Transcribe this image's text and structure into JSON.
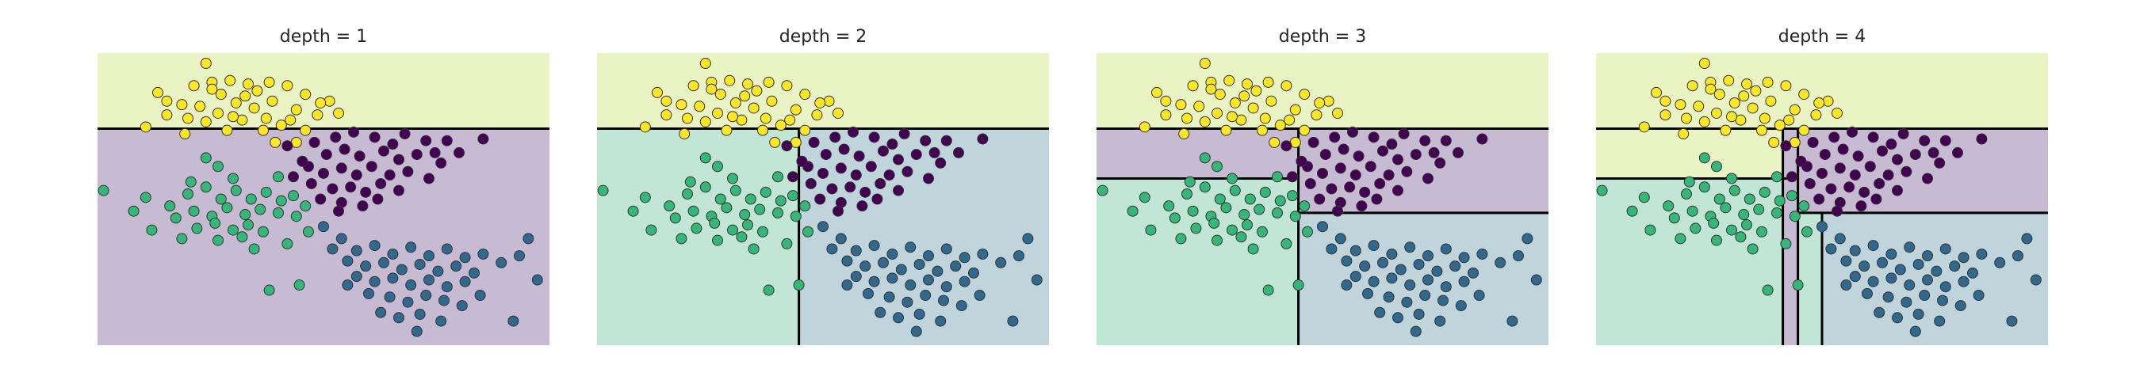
{
  "chart_data": [
    {
      "type": "scatter",
      "title": "depth = 1",
      "xlim": [
        -4,
        3.5
      ],
      "ylim": [
        -3,
        5.5
      ],
      "regions": [
        {
          "x": [
            -4,
            3.5
          ],
          "y": [
            3.3,
            5.5
          ],
          "class": 3
        },
        {
          "x": [
            -4,
            3.5
          ],
          "y": [
            -3,
            3.3
          ],
          "class": 0
        }
      ],
      "splits": [
        {
          "orient": "h",
          "at": 3.3,
          "from": -4,
          "to": 3.5
        }
      ]
    },
    {
      "type": "scatter",
      "title": "depth = 2",
      "xlim": [
        -4,
        3.5
      ],
      "ylim": [
        -3,
        5.5
      ],
      "regions": [
        {
          "x": [
            -4,
            3.5
          ],
          "y": [
            3.3,
            5.5
          ],
          "class": 3
        },
        {
          "x": [
            -4,
            -0.65
          ],
          "y": [
            -3,
            3.3
          ],
          "class": 2
        },
        {
          "x": [
            -0.65,
            3.5
          ],
          "y": [
            -3,
            3.3
          ],
          "class": 1
        }
      ],
      "splits": [
        {
          "orient": "h",
          "at": 3.3,
          "from": -4,
          "to": 3.5
        },
        {
          "orient": "v",
          "at": -0.65,
          "from": -3,
          "to": 3.3
        }
      ]
    },
    {
      "type": "scatter",
      "title": "depth = 3",
      "xlim": [
        -4,
        3.5
      ],
      "ylim": [
        -3,
        5.5
      ],
      "regions": [
        {
          "x": [
            -4,
            3.5
          ],
          "y": [
            3.3,
            5.5
          ],
          "class": 3
        },
        {
          "x": [
            -4,
            -0.65
          ],
          "y": [
            1.85,
            3.3
          ],
          "class": 0
        },
        {
          "x": [
            -4,
            -0.65
          ],
          "y": [
            -3,
            1.85
          ],
          "class": 2
        },
        {
          "x": [
            -0.65,
            3.5
          ],
          "y": [
            0.85,
            3.3
          ],
          "class": 0
        },
        {
          "x": [
            -0.65,
            3.5
          ],
          "y": [
            -3,
            0.85
          ],
          "class": 1
        }
      ],
      "splits": [
        {
          "orient": "h",
          "at": 3.3,
          "from": -4,
          "to": 3.5
        },
        {
          "orient": "v",
          "at": -0.65,
          "from": -3,
          "to": 3.3
        },
        {
          "orient": "h",
          "at": 1.85,
          "from": -4,
          "to": -0.65
        },
        {
          "orient": "h",
          "at": 0.85,
          "from": -0.65,
          "to": 3.5
        }
      ]
    },
    {
      "type": "scatter",
      "title": "depth = 4",
      "xlim": [
        -4,
        3.5
      ],
      "ylim": [
        -3,
        5.5
      ],
      "regions": [
        {
          "x": [
            -4,
            3.5
          ],
          "y": [
            3.3,
            5.5
          ],
          "class": 3
        },
        {
          "x": [
            -4,
            -0.9
          ],
          "y": [
            1.85,
            3.3
          ],
          "class": 3
        },
        {
          "x": [
            -0.9,
            -0.65
          ],
          "y": [
            1.85,
            3.3
          ],
          "class": 0
        },
        {
          "x": [
            -4,
            -0.9
          ],
          "y": [
            -3,
            1.85
          ],
          "class": 2
        },
        {
          "x": [
            -0.9,
            -0.65
          ],
          "y": [
            -3,
            1.85
          ],
          "class": 0
        },
        {
          "x": [
            -0.65,
            3.5
          ],
          "y": [
            0.85,
            3.3
          ],
          "class": 0
        },
        {
          "x": [
            -0.65,
            -0.25
          ],
          "y": [
            -3,
            0.85
          ],
          "class": 2
        },
        {
          "x": [
            -0.25,
            3.5
          ],
          "y": [
            -3,
            0.85
          ],
          "class": 1
        }
      ],
      "splits": [
        {
          "orient": "h",
          "at": 3.3,
          "from": -4,
          "to": 3.5
        },
        {
          "orient": "v",
          "at": -0.65,
          "from": -3,
          "to": 3.3
        },
        {
          "orient": "h",
          "at": 1.85,
          "from": -4,
          "to": -0.65
        },
        {
          "orient": "h",
          "at": 0.85,
          "from": -0.65,
          "to": 3.5
        },
        {
          "orient": "v",
          "at": -0.9,
          "from": -3,
          "to": 3.3
        },
        {
          "orient": "v",
          "at": -0.25,
          "from": -3,
          "to": 0.85
        }
      ]
    }
  ],
  "points": [
    [
      -2.2,
      5.2,
      3
    ],
    [
      -3.0,
      4.35,
      3
    ],
    [
      -2.85,
      4.1,
      3
    ],
    [
      -2.4,
      4.55,
      3
    ],
    [
      -2.1,
      4.65,
      3
    ],
    [
      -1.8,
      4.7,
      3
    ],
    [
      -1.5,
      4.6,
      3
    ],
    [
      -1.15,
      4.65,
      3
    ],
    [
      -0.85,
      4.55,
      3
    ],
    [
      -0.55,
      4.3,
      3
    ],
    [
      -1.35,
      4.4,
      3
    ],
    [
      -1.95,
      4.3,
      3
    ],
    [
      -2.6,
      4.0,
      3
    ],
    [
      -2.3,
      3.95,
      3
    ],
    [
      -1.7,
      4.05,
      3
    ],
    [
      -1.1,
      4.1,
      3
    ],
    [
      -0.7,
      3.85,
      3
    ],
    [
      -1.4,
      3.9,
      3
    ],
    [
      -2.0,
      3.75,
      3
    ],
    [
      -2.5,
      3.6,
      3
    ],
    [
      -2.85,
      3.7,
      3
    ],
    [
      -1.2,
      3.6,
      3
    ],
    [
      -0.8,
      3.55,
      3
    ],
    [
      -0.35,
      3.7,
      3
    ],
    [
      0.0,
      3.75,
      3
    ],
    [
      -1.6,
      3.55,
      3
    ],
    [
      -2.2,
      3.5,
      3
    ],
    [
      -0.95,
      3.4,
      3
    ],
    [
      -3.2,
      3.35,
      3
    ],
    [
      -1.85,
      3.25,
      3
    ],
    [
      -1.25,
      3.25,
      3
    ],
    [
      -0.55,
      3.25,
      3
    ],
    [
      -2.55,
      3.15,
      3
    ],
    [
      -0.15,
      4.1,
      3
    ],
    [
      -1.75,
      3.65,
      3
    ],
    [
      -1.05,
      2.9,
      3
    ],
    [
      -0.7,
      2.9,
      3
    ],
    [
      -2.1,
      4.45,
      3
    ],
    [
      -1.55,
      4.25,
      3
    ],
    [
      -0.3,
      4.05,
      3
    ],
    [
      -0.4,
      2.9,
      0
    ],
    [
      -0.05,
      3.05,
      0
    ],
    [
      0.25,
      3.2,
      0
    ],
    [
      0.6,
      3.05,
      0
    ],
    [
      1.1,
      3.15,
      0
    ],
    [
      1.45,
      2.95,
      0
    ],
    [
      -0.2,
      2.55,
      0
    ],
    [
      0.1,
      2.7,
      0
    ],
    [
      0.35,
      2.5,
      0
    ],
    [
      0.75,
      2.65,
      0
    ],
    [
      1.0,
      2.4,
      0
    ],
    [
      1.3,
      2.55,
      0
    ],
    [
      1.7,
      2.3,
      0
    ],
    [
      2.0,
      2.6,
      0
    ],
    [
      -0.5,
      2.2,
      0
    ],
    [
      -0.25,
      2.0,
      0
    ],
    [
      0.05,
      2.15,
      0
    ],
    [
      0.3,
      1.95,
      0
    ],
    [
      0.55,
      2.2,
      0
    ],
    [
      0.85,
      1.95,
      0
    ],
    [
      1.15,
      2.05,
      0
    ],
    [
      1.5,
      1.85,
      0
    ],
    [
      -0.45,
      1.7,
      0
    ],
    [
      -0.1,
      1.55,
      0
    ],
    [
      0.2,
      1.6,
      0
    ],
    [
      0.45,
      1.45,
      0
    ],
    [
      0.7,
      1.7,
      0
    ],
    [
      1.0,
      1.5,
      0
    ],
    [
      -0.3,
      1.25,
      0
    ],
    [
      0.05,
      1.15,
      0
    ],
    [
      0.4,
      1.05,
      0
    ],
    [
      0.65,
      1.25,
      0
    ],
    [
      2.4,
      3.0,
      0
    ],
    [
      1.8,
      2.95,
      0
    ],
    [
      -0.85,
      2.8,
      0
    ],
    [
      -0.6,
      2.35,
      0
    ],
    [
      0.0,
      0.9,
      0
    ],
    [
      -0.75,
      1.9,
      0
    ],
    [
      0.9,
      2.85,
      0
    ],
    [
      1.6,
      2.6,
      0
    ],
    [
      -3.9,
      1.5,
      2
    ],
    [
      -3.2,
      1.3,
      2
    ],
    [
      -2.8,
      1.05,
      2
    ],
    [
      -2.5,
      1.4,
      2
    ],
    [
      -2.2,
      1.6,
      2
    ],
    [
      -1.95,
      1.25,
      2
    ],
    [
      -1.7,
      1.5,
      2
    ],
    [
      -1.45,
      1.25,
      2
    ],
    [
      -1.2,
      1.45,
      2
    ],
    [
      -0.95,
      1.2,
      2
    ],
    [
      -0.75,
      1.35,
      2
    ],
    [
      -0.55,
      1.05,
      2
    ],
    [
      -2.7,
      0.7,
      2
    ],
    [
      -2.4,
      0.9,
      2
    ],
    [
      -2.1,
      0.75,
      2
    ],
    [
      -1.85,
      1.0,
      2
    ],
    [
      -1.55,
      0.8,
      2
    ],
    [
      -1.3,
      0.95,
      2
    ],
    [
      -1.0,
      0.85,
      2
    ],
    [
      -0.7,
      0.75,
      2
    ],
    [
      -2.35,
      0.4,
      2
    ],
    [
      -2.05,
      0.55,
      2
    ],
    [
      -1.75,
      0.35,
      2
    ],
    [
      -1.5,
      0.5,
      2
    ],
    [
      -1.25,
      0.3,
      2
    ],
    [
      -2.0,
      0.05,
      2
    ],
    [
      -1.6,
      0.15,
      2
    ],
    [
      -3.1,
      0.35,
      2
    ],
    [
      -2.6,
      0.1,
      2
    ],
    [
      -0.5,
      0.3,
      2
    ],
    [
      -0.85,
      -0.05,
      2
    ],
    [
      -1.4,
      -0.2,
      2
    ],
    [
      -1.15,
      -1.4,
      2
    ],
    [
      -0.65,
      -1.25,
      2
    ],
    [
      -3.4,
      0.9,
      2
    ],
    [
      -2.2,
      2.45,
      2
    ],
    [
      -2.0,
      2.2,
      2
    ],
    [
      -1.75,
      1.85,
      2
    ],
    [
      -2.45,
      1.75,
      2
    ],
    [
      -1.0,
      1.9,
      2
    ],
    [
      -0.25,
      0.45,
      1
    ],
    [
      0.05,
      0.1,
      1
    ],
    [
      0.3,
      -0.25,
      1
    ],
    [
      0.6,
      -0.1,
      1
    ],
    [
      0.9,
      -0.35,
      1
    ],
    [
      1.2,
      -0.15,
      1
    ],
    [
      1.5,
      -0.4,
      1
    ],
    [
      1.8,
      -0.2,
      1
    ],
    [
      2.1,
      -0.45,
      1
    ],
    [
      0.15,
      -0.55,
      1
    ],
    [
      0.45,
      -0.7,
      1
    ],
    [
      0.75,
      -0.6,
      1
    ],
    [
      1.05,
      -0.8,
      1
    ],
    [
      1.35,
      -0.65,
      1
    ],
    [
      1.65,
      -0.85,
      1
    ],
    [
      1.95,
      -0.7,
      1
    ],
    [
      2.25,
      -0.9,
      1
    ],
    [
      0.3,
      -1.0,
      1
    ],
    [
      0.6,
      -1.15,
      1
    ],
    [
      0.9,
      -1.05,
      1
    ],
    [
      1.2,
      -1.25,
      1
    ],
    [
      1.5,
      -1.1,
      1
    ],
    [
      1.8,
      -1.3,
      1
    ],
    [
      2.1,
      -1.15,
      1
    ],
    [
      0.5,
      -1.5,
      1
    ],
    [
      0.85,
      -1.6,
      1
    ],
    [
      1.15,
      -1.75,
      1
    ],
    [
      1.45,
      -1.55,
      1
    ],
    [
      1.75,
      -1.7,
      1
    ],
    [
      2.05,
      -1.85,
      1
    ],
    [
      0.7,
      -2.05,
      1
    ],
    [
      1.0,
      -2.2,
      1
    ],
    [
      1.35,
      -2.1,
      1
    ],
    [
      1.7,
      -2.3,
      1
    ],
    [
      2.4,
      -0.35,
      1
    ],
    [
      2.7,
      -0.6,
      1
    ],
    [
      3.15,
      0.1,
      1
    ],
    [
      3.0,
      -0.4,
      1
    ],
    [
      3.3,
      -1.1,
      1
    ],
    [
      2.9,
      -2.3,
      1
    ],
    [
      1.3,
      -2.6,
      1
    ],
    [
      0.15,
      -1.25,
      1
    ],
    [
      -0.1,
      -0.2,
      1
    ],
    [
      2.35,
      -1.55,
      1
    ]
  ],
  "palette": {
    "classes": [
      "#440154",
      "#31688e",
      "#35b779",
      "#fde725"
    ],
    "regions": [
      "#c7bbd4",
      "#c0d4db",
      "#c2e6d5",
      "#e9f3c3"
    ],
    "split_line": "#000000",
    "point_edge": "#333333"
  }
}
